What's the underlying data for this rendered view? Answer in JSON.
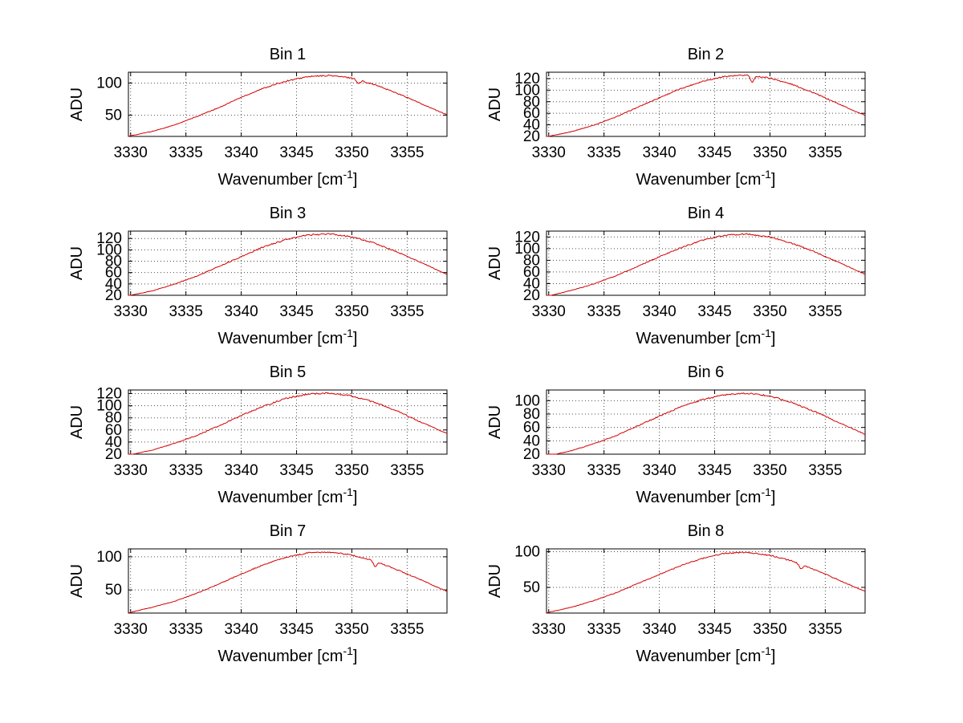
{
  "figure": {
    "background": "#ffffff",
    "line_color": "#d40000",
    "grid_color": "#4d4d4d",
    "axis_color": "#000000"
  },
  "chart_data": [
    {
      "type": "line",
      "title": "Bin 1",
      "xlabel": "Wavenumber [cm^{-1}]",
      "ylabel": "ADU",
      "x": [
        3330,
        3332,
        3334,
        3336,
        3338,
        3340,
        3342,
        3344,
        3346,
        3348,
        3350,
        3352,
        3354,
        3356,
        3358,
        3359
      ],
      "values": [
        18,
        25,
        35,
        48,
        62,
        78,
        92,
        103,
        110,
        112,
        108,
        98,
        85,
        70,
        55,
        48
      ],
      "xticks": [
        3330,
        3335,
        3340,
        3345,
        3350,
        3355
      ],
      "yticks": [
        50,
        100
      ],
      "xlim": [
        3329.8,
        3358.6
      ],
      "ylim": [
        17,
        117
      ],
      "grid": true,
      "legend": null,
      "noise_adu": 2.0,
      "dips": [
        {
          "x": 3350.6,
          "depth": 6
        }
      ]
    },
    {
      "type": "line",
      "title": "Bin 2",
      "xlabel": "Wavenumber [cm^{-1}]",
      "ylabel": "ADU",
      "x": [
        3330,
        3332,
        3334,
        3336,
        3338,
        3340,
        3342,
        3344,
        3346,
        3348,
        3350,
        3352,
        3354,
        3356,
        3358,
        3359
      ],
      "values": [
        20,
        28,
        39,
        53,
        70,
        87,
        103,
        116,
        124,
        126,
        121,
        110,
        95,
        78,
        61,
        53
      ],
      "xticks": [
        3330,
        3335,
        3340,
        3345,
        3350,
        3355
      ],
      "yticks": [
        20,
        40,
        60,
        80,
        100,
        120
      ],
      "xlim": [
        3329.8,
        3358.6
      ],
      "ylim": [
        20,
        131
      ],
      "grid": true,
      "legend": null,
      "noise_adu": 2.2,
      "dips": [
        {
          "x": 3348.4,
          "depth": 13
        }
      ]
    },
    {
      "type": "line",
      "title": "Bin 3",
      "xlabel": "Wavenumber [cm^{-1}]",
      "ylabel": "ADU",
      "x": [
        3330,
        3332,
        3334,
        3336,
        3338,
        3340,
        3342,
        3344,
        3346,
        3348,
        3350,
        3352,
        3354,
        3356,
        3358,
        3359
      ],
      "values": [
        20,
        28,
        40,
        54,
        71,
        88,
        105,
        118,
        126,
        128,
        123,
        112,
        97,
        80,
        62,
        54
      ],
      "xticks": [
        3330,
        3335,
        3340,
        3345,
        3350,
        3355
      ],
      "yticks": [
        20,
        40,
        60,
        80,
        100,
        120
      ],
      "xlim": [
        3329.8,
        3358.6
      ],
      "ylim": [
        20,
        133
      ],
      "grid": true,
      "legend": null,
      "noise_adu": 2.4,
      "dips": []
    },
    {
      "type": "line",
      "title": "Bin 4",
      "xlabel": "Wavenumber [cm^{-1}]",
      "ylabel": "ADU",
      "x": [
        3330,
        3332,
        3334,
        3336,
        3338,
        3340,
        3342,
        3344,
        3346,
        3348,
        3350,
        3352,
        3354,
        3356,
        3358,
        3359
      ],
      "values": [
        19,
        28,
        39,
        53,
        69,
        86,
        102,
        115,
        123,
        125,
        120,
        109,
        95,
        78,
        61,
        53
      ],
      "xticks": [
        3330,
        3335,
        3340,
        3345,
        3350,
        3355
      ],
      "yticks": [
        20,
        40,
        60,
        80,
        100,
        120
      ],
      "xlim": [
        3329.8,
        3358.6
      ],
      "ylim": [
        20,
        130
      ],
      "grid": true,
      "legend": null,
      "noise_adu": 2.2,
      "dips": []
    },
    {
      "type": "line",
      "title": "Bin 5",
      "xlabel": "Wavenumber [cm^{-1}]",
      "ylabel": "ADU",
      "x": [
        3330,
        3332,
        3334,
        3336,
        3338,
        3340,
        3342,
        3344,
        3346,
        3348,
        3350,
        3352,
        3354,
        3356,
        3358,
        3359
      ],
      "values": [
        19,
        27,
        38,
        51,
        67,
        84,
        99,
        112,
        119,
        121,
        116,
        106,
        92,
        75,
        59,
        51
      ],
      "xticks": [
        3330,
        3335,
        3340,
        3345,
        3350,
        3355
      ],
      "yticks": [
        20,
        40,
        60,
        80,
        100,
        120
      ],
      "xlim": [
        3329.8,
        3358.6
      ],
      "ylim": [
        20,
        126
      ],
      "grid": true,
      "legend": null,
      "noise_adu": 2.4,
      "dips": []
    },
    {
      "type": "line",
      "title": "Bin 6",
      "xlabel": "Wavenumber [cm^{-1}]",
      "ylabel": "ADU",
      "x": [
        3330,
        3332,
        3334,
        3336,
        3338,
        3340,
        3342,
        3344,
        3346,
        3348,
        3350,
        3352,
        3354,
        3356,
        3358,
        3359
      ],
      "values": [
        18,
        25,
        35,
        47,
        62,
        77,
        91,
        102,
        109,
        111,
        107,
        97,
        84,
        69,
        54,
        47
      ],
      "xticks": [
        3330,
        3335,
        3340,
        3345,
        3350,
        3355
      ],
      "yticks": [
        20,
        40,
        60,
        80,
        100
      ],
      "xlim": [
        3329.8,
        3358.6
      ],
      "ylim": [
        20,
        116
      ],
      "grid": true,
      "legend": null,
      "noise_adu": 2.2,
      "dips": []
    },
    {
      "type": "line",
      "title": "Bin 7",
      "xlabel": "Wavenumber [cm^{-1}]",
      "ylabel": "ADU",
      "x": [
        3330,
        3332,
        3334,
        3336,
        3338,
        3340,
        3342,
        3344,
        3346,
        3348,
        3350,
        3352,
        3354,
        3356,
        3358,
        3359
      ],
      "values": [
        16,
        24,
        33,
        45,
        59,
        74,
        88,
        99,
        106,
        107,
        103,
        94,
        81,
        67,
        52,
        45
      ],
      "xticks": [
        3330,
        3335,
        3340,
        3345,
        3350,
        3355
      ],
      "yticks": [
        50,
        100
      ],
      "xlim": [
        3329.8,
        3358.6
      ],
      "ylim": [
        15,
        112
      ],
      "grid": true,
      "legend": null,
      "noise_adu": 1.8,
      "dips": [
        {
          "x": 3352.1,
          "depth": 9
        }
      ]
    },
    {
      "type": "line",
      "title": "Bin 8",
      "xlabel": "Wavenumber [cm^{-1}]",
      "ylabel": "ADU",
      "x": [
        3330,
        3332,
        3334,
        3336,
        3338,
        3340,
        3342,
        3344,
        3346,
        3348,
        3350,
        3352,
        3354,
        3356,
        3358,
        3359
      ],
      "values": [
        15,
        22,
        31,
        42,
        55,
        68,
        81,
        91,
        98,
        99,
        95,
        87,
        75,
        62,
        48,
        42
      ],
      "xticks": [
        3330,
        3335,
        3340,
        3345,
        3350,
        3355
      ],
      "yticks": [
        50,
        100
      ],
      "xlim": [
        3329.8,
        3358.6
      ],
      "ylim": [
        14,
        104
      ],
      "grid": true,
      "legend": null,
      "noise_adu": 1.8,
      "dips": [
        {
          "x": 3352.8,
          "depth": 7
        }
      ]
    }
  ]
}
